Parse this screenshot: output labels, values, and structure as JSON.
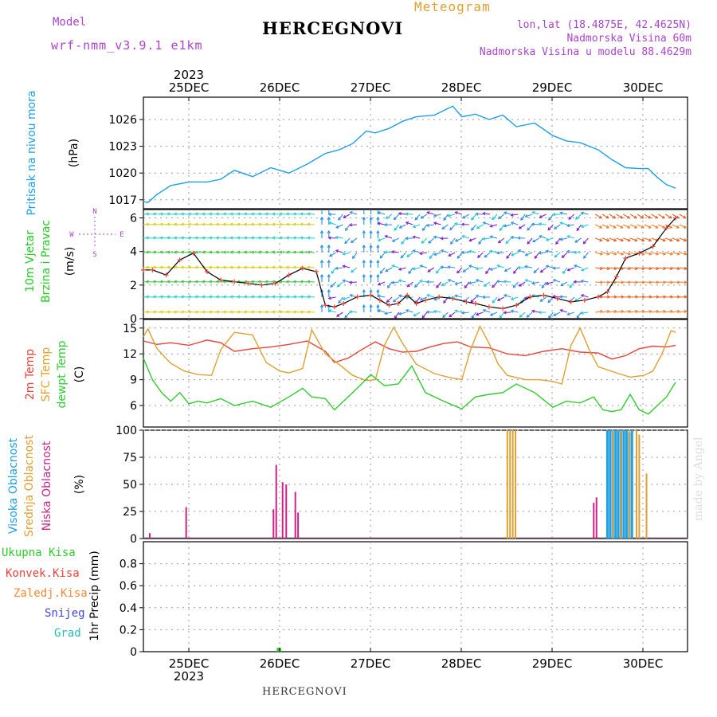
{
  "header": {
    "model_label": "Model",
    "model_value": "wrf-nmm_v3.9.1 e1km",
    "title": "HERCEGNOVI",
    "meteogram": "Meteogram",
    "lonlat": "lon,lat (18.4875E, 42.4625N)",
    "elev": "Nadmorska Visina 60m",
    "elev_model": "Nadmorska Visina u modelu 88.4629m",
    "footer": "HERCEGNOVI",
    "watermark": "made by Angel"
  },
  "time_axis": {
    "dates": [
      "25DEC",
      "26DEC",
      "27DEC",
      "28DEC",
      "29DEC",
      "30DEC"
    ],
    "year": "2023"
  },
  "colors": {
    "pressure": "#1ea0e6",
    "t2m": "#e8443a",
    "sfc": "#e0a030",
    "dewpt": "#2ecc2e",
    "high_cloud": "#1ea0e6",
    "mid_cloud": "#e0a030",
    "low_cloud": "#cc2288",
    "wind_label": "#22cc22",
    "compass": "#aa44cc"
  },
  "labels": {
    "pressure_title": "Pritisak na nivou mora",
    "pressure_unit": "(hPa)",
    "wind_title_1": "10m Vjetar",
    "wind_title_2": "Brzina i Pravac",
    "wind_unit": "(m/s)",
    "compass_n": "N",
    "compass_s": "S",
    "compass_w": "W",
    "compass_e": "E",
    "temp_t2m": "2m Temp",
    "temp_sfc": "SFC Temp",
    "temp_dew": "dewpt Temp",
    "temp_unit": "(C)",
    "cloud_high": "Visoka Oblacnost",
    "cloud_mid": "Srednja Oblacnost",
    "cloud_low": "Niska Oblacnost",
    "cloud_unit": "(%)",
    "precip_total": "Ukupna Kisa",
    "precip_conv": "Konvek.Kisa",
    "precip_frz": "Zaledj.Kisa",
    "precip_snow": "Snijeg",
    "precip_grad": "Grad",
    "precip_unit": "1hr Precip (mm)"
  },
  "chart_data": [
    {
      "type": "line",
      "name": "pressure",
      "ylabel": "(hPa)",
      "ylim": [
        1016,
        1028.5
      ],
      "yticks": [
        "1017",
        "1020",
        "1023",
        "1026"
      ],
      "x_days": [
        0,
        0.05,
        0.15,
        0.3,
        0.5,
        0.7,
        0.85,
        1.0,
        1.2,
        1.4,
        1.6,
        1.8,
        2.0,
        2.15,
        2.3,
        2.45,
        2.55,
        2.7,
        2.85,
        3.0,
        3.2,
        3.4,
        3.5,
        3.65,
        3.8,
        3.95,
        4.1,
        4.3,
        4.5,
        4.65,
        4.8,
        5.0,
        5.15,
        5.3,
        5.45,
        5.55,
        5.65,
        5.75,
        5.85
      ],
      "values": [
        1016.8,
        1016.7,
        1017.6,
        1018.6,
        1019.0,
        1019.0,
        1019.3,
        1020.3,
        1019.6,
        1020.6,
        1020.0,
        1021.0,
        1022.2,
        1022.6,
        1023.3,
        1024.7,
        1024.5,
        1025.0,
        1025.8,
        1026.3,
        1026.5,
        1027.5,
        1026.3,
        1026.6,
        1026.0,
        1026.5,
        1025.2,
        1025.6,
        1024.2,
        1023.6,
        1023.4,
        1022.6,
        1021.5,
        1020.6,
        1020.5,
        1020.5,
        1019.5,
        1018.7,
        1018.3
      ]
    },
    {
      "type": "line",
      "name": "10m wind speed",
      "ylabel": "(m/s)",
      "ylim": [
        0,
        6.5
      ],
      "yticks": [
        "0",
        "2",
        "4",
        "6"
      ],
      "x_days": [
        0,
        0.1,
        0.25,
        0.4,
        0.55,
        0.7,
        0.85,
        1.0,
        1.15,
        1.3,
        1.45,
        1.6,
        1.75,
        1.9,
        2.0,
        2.1,
        2.2,
        2.35,
        2.5,
        2.6,
        2.7,
        2.8,
        2.9,
        3.0,
        3.1,
        3.25,
        3.4,
        3.55,
        3.65,
        3.8,
        3.95,
        4.1,
        4.25,
        4.4,
        4.55,
        4.7,
        4.85,
        5.0,
        5.1,
        5.2,
        5.3,
        5.45,
        5.6,
        5.75,
        5.85
      ],
      "values": [
        2.9,
        2.9,
        2.6,
        3.5,
        3.9,
        2.8,
        2.3,
        2.2,
        2.1,
        2.0,
        2.1,
        2.6,
        3.0,
        2.8,
        0.8,
        0.7,
        0.9,
        1.3,
        1.4,
        1.1,
        0.8,
        0.9,
        1.4,
        0.9,
        1.1,
        1.3,
        1.2,
        1.0,
        0.9,
        0.7,
        0.6,
        0.8,
        1.3,
        1.4,
        1.2,
        1.0,
        1.1,
        1.3,
        1.6,
        2.5,
        3.6,
        3.9,
        4.3,
        5.4,
        6.0
      ],
      "wind_arrows": "field of 10m wind arrows at 7 speed rows, colored by speed"
    },
    {
      "type": "line",
      "name": "temperature",
      "ylabel": "(C)",
      "ylim": [
        3.5,
        16
      ],
      "yticks": [
        "6",
        "9",
        "12",
        "15"
      ],
      "series": [
        {
          "name": "2m Temp",
          "x_days": [
            0,
            0.15,
            0.3,
            0.5,
            0.7,
            0.85,
            1.0,
            1.2,
            1.4,
            1.6,
            1.8,
            2.0,
            2.1,
            2.25,
            2.4,
            2.55,
            2.7,
            2.85,
            3.0,
            3.15,
            3.3,
            3.45,
            3.6,
            3.8,
            4.0,
            4.2,
            4.4,
            4.6,
            4.8,
            5.0,
            5.15,
            5.3,
            5.45,
            5.6,
            5.75,
            5.85
          ],
          "values": [
            13.5,
            13.1,
            13.3,
            13.0,
            13.6,
            13.3,
            12.3,
            12.6,
            12.8,
            13.1,
            13.5,
            12.3,
            11.0,
            11.5,
            12.5,
            13.4,
            12.6,
            12.2,
            12.3,
            12.8,
            13.2,
            13.4,
            12.8,
            12.7,
            12.0,
            11.8,
            12.3,
            12.6,
            12.2,
            12.1,
            11.4,
            11.8,
            12.6,
            12.9,
            12.8,
            13.0
          ]
        },
        {
          "name": "SFC Temp",
          "x_days": [
            0,
            0.05,
            0.15,
            0.3,
            0.45,
            0.6,
            0.75,
            0.85,
            1.0,
            1.2,
            1.35,
            1.5,
            1.6,
            1.75,
            1.85,
            2.0,
            2.15,
            2.3,
            2.45,
            2.55,
            2.65,
            2.75,
            2.85,
            3.0,
            3.2,
            3.35,
            3.5,
            3.6,
            3.7,
            3.8,
            3.9,
            4.0,
            4.2,
            4.35,
            4.5,
            4.6,
            4.7,
            4.8,
            4.9,
            5.0,
            5.2,
            5.35,
            5.5,
            5.6,
            5.7,
            5.8,
            5.85
          ],
          "values": [
            14.0,
            14.9,
            12.6,
            10.9,
            10.0,
            9.6,
            9.5,
            12.5,
            14.5,
            14.2,
            11.0,
            10.0,
            9.8,
            10.3,
            14.8,
            12.0,
            10.8,
            9.5,
            8.9,
            9.0,
            13.0,
            15.1,
            13.2,
            10.8,
            9.7,
            9.3,
            9.0,
            12.6,
            15.2,
            13.2,
            10.8,
            9.5,
            9.0,
            9.0,
            8.8,
            8.5,
            13.0,
            15.0,
            12.5,
            10.5,
            9.8,
            9.3,
            9.5,
            10.0,
            12.0,
            14.7,
            14.5
          ]
        },
        {
          "name": "dewpt Temp",
          "x_days": [
            0,
            0.1,
            0.2,
            0.3,
            0.4,
            0.5,
            0.6,
            0.7,
            0.85,
            1.0,
            1.2,
            1.4,
            1.6,
            1.75,
            1.85,
            2.0,
            2.1,
            2.2,
            2.35,
            2.5,
            2.65,
            2.8,
            2.95,
            3.1,
            3.3,
            3.5,
            3.65,
            3.8,
            3.95,
            4.1,
            4.3,
            4.5,
            4.65,
            4.8,
            4.95,
            5.05,
            5.15,
            5.25,
            5.35,
            5.45,
            5.55,
            5.65,
            5.75,
            5.85
          ],
          "values": [
            11.5,
            9.0,
            7.5,
            6.5,
            7.5,
            6.2,
            6.5,
            6.3,
            6.8,
            6.0,
            6.5,
            5.8,
            7.0,
            8.0,
            7.0,
            6.8,
            5.5,
            6.5,
            8.0,
            9.6,
            8.3,
            8.5,
            10.6,
            7.5,
            6.5,
            5.6,
            7.0,
            7.3,
            7.5,
            8.5,
            7.5,
            5.8,
            6.5,
            6.3,
            7.0,
            5.5,
            5.3,
            5.5,
            7.3,
            5.5,
            5.0,
            6.0,
            7.0,
            8.7
          ]
        }
      ]
    },
    {
      "type": "bar",
      "name": "cloud cover",
      "ylabel": "(%)",
      "ylim": [
        0,
        100
      ],
      "yticks": [
        "0",
        "25",
        "50",
        "75",
        "100"
      ],
      "series": [
        {
          "name": "Visoka Oblacnost",
          "x_days": [
            5.1,
            5.13,
            5.16,
            5.19,
            5.22,
            5.25,
            5.28,
            5.31,
            5.34,
            5.37
          ],
          "values": [
            100,
            100,
            100,
            100,
            100,
            100,
            100,
            100,
            98,
            100
          ]
        },
        {
          "name": "Srednja Oblacnost",
          "x_days": [
            4.0,
            4.03,
            4.06,
            4.09,
            5.16,
            5.25,
            5.34,
            5.42,
            5.45,
            5.53
          ],
          "values": [
            100,
            100,
            100,
            100,
            100,
            100,
            100,
            100,
            96,
            60
          ]
        },
        {
          "name": "Niska Oblacnost",
          "x_days": [
            0.07,
            0.47,
            1.43,
            1.46,
            1.53,
            1.57,
            1.67,
            1.7,
            4.95,
            4.98
          ],
          "values": [
            5,
            29,
            27,
            68,
            52,
            50,
            43,
            24,
            33,
            38
          ]
        }
      ]
    },
    {
      "type": "bar",
      "name": "1hr precipitation",
      "ylabel": "1hr Precip (mm)",
      "ylim": [
        0,
        1.0
      ],
      "yticks": [
        "0",
        "0.2",
        "0.4",
        "0.6",
        "0.8"
      ],
      "series": [
        {
          "name": "Ukupna Kisa",
          "x_days": [
            1.48,
            1.5
          ],
          "values": [
            0.035,
            0.035
          ]
        }
      ]
    }
  ]
}
